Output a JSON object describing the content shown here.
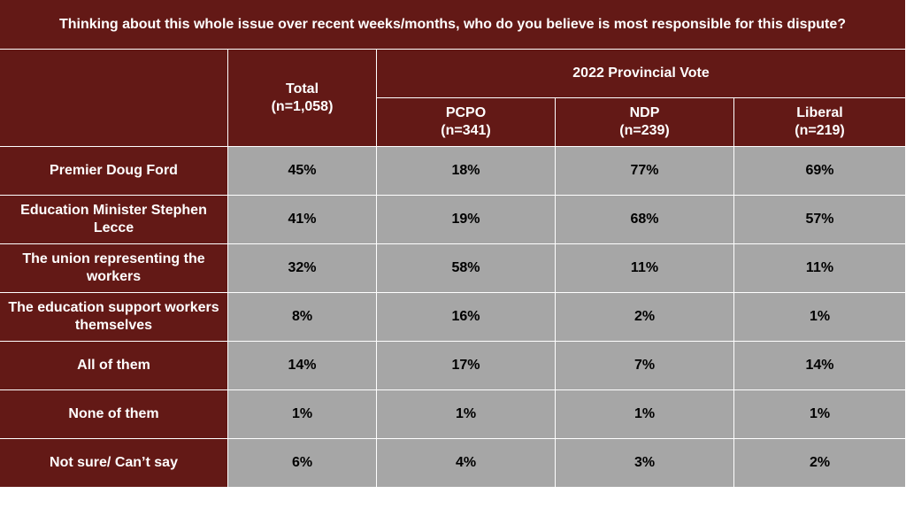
{
  "chart_data": {
    "type": "table",
    "title": "Thinking about this whole issue over recent weeks/months, who do you believe is most responsible for this dispute?",
    "group_header": "2022 Provincial Vote",
    "columns": [
      {
        "label": "Total",
        "n": "(n=1,058)"
      },
      {
        "label": "PCPO",
        "n": "(n=341)"
      },
      {
        "label": "NDP",
        "n": "(n=239)"
      },
      {
        "label": "Liberal",
        "n": "(n=219)"
      }
    ],
    "rows": [
      {
        "label": "Premier Doug Ford",
        "values": [
          "45%",
          "18%",
          "77%",
          "69%"
        ]
      },
      {
        "label": "Education Minister Stephen Lecce",
        "values": [
          "41%",
          "19%",
          "68%",
          "57%"
        ]
      },
      {
        "label": "The union representing the workers",
        "values": [
          "32%",
          "58%",
          "11%",
          "11%"
        ]
      },
      {
        "label": "The education support workers themselves",
        "values": [
          "8%",
          "16%",
          "2%",
          "1%"
        ]
      },
      {
        "label": "All of them",
        "values": [
          "14%",
          "17%",
          "7%",
          "14%"
        ]
      },
      {
        "label": "None of them",
        "values": [
          "1%",
          "1%",
          "1%",
          "1%"
        ]
      },
      {
        "label": "Not sure/ Can’t say",
        "values": [
          "6%",
          "4%",
          "3%",
          "2%"
        ]
      }
    ]
  },
  "colors": {
    "header_bg": "#631916",
    "header_text": "#ffffff",
    "cell_bg": "#a6a6a6",
    "cell_text": "#000000"
  }
}
